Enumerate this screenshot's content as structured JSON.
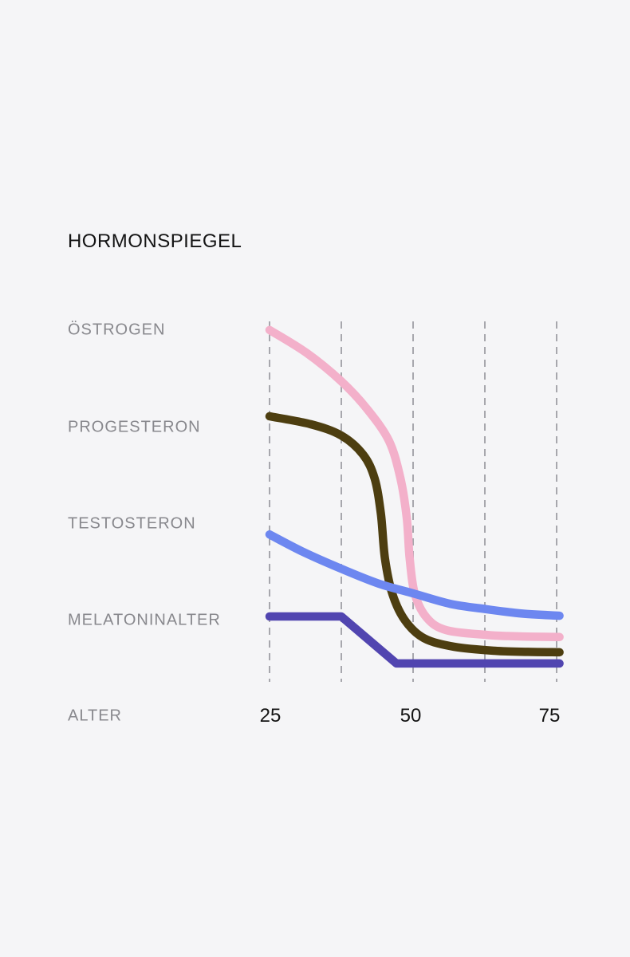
{
  "page": {
    "background_color": "#f5f5f7"
  },
  "chart": {
    "title": "HORMONSPIEGEL",
    "row_labels": [
      "ÖSTROGEN",
      "PROGESTERON",
      "TESTOSTERON",
      "MELATONINALTER"
    ],
    "axis_label": "ALTER",
    "colors": {
      "title_text": "#141414",
      "label_text": "#88888d",
      "tick_text": "#141414",
      "gridline": "#a7a7ad"
    }
  },
  "chart_data": {
    "type": "line",
    "title": "HORMONSPIEGEL",
    "xlabel": "ALTER",
    "ylabel": "",
    "x_range": [
      25,
      75.5
    ],
    "ylim": [
      0,
      100
    ],
    "x_tick_labels": [
      "25",
      "50",
      "75"
    ],
    "x_ticks": [
      25,
      50,
      75
    ],
    "grid_ages": [
      25,
      37.5,
      50,
      62.5,
      75
    ],
    "grid_style": "vertical-dashed",
    "legend_position": "left-of-line-start",
    "series": [
      {
        "name": "ÖSTROGEN",
        "slug": "oestrogen",
        "color": "#f3b0ca",
        "smooth": true,
        "points": [
          [
            25,
            97.4
          ],
          [
            31.5,
            91.0
          ],
          [
            37.5,
            83.2
          ],
          [
            41.9,
            75.7
          ],
          [
            45.8,
            66.7
          ],
          [
            47.8,
            56.3
          ],
          [
            48.9,
            45.3
          ],
          [
            49.4,
            34.2
          ],
          [
            50.3,
            24.3
          ],
          [
            52.4,
            17.7
          ],
          [
            55.8,
            14.3
          ],
          [
            62.8,
            13.0
          ],
          [
            68.0,
            12.6
          ],
          [
            75.5,
            12.4
          ]
        ]
      },
      {
        "name": "PROGESTERON",
        "slug": "progesteron",
        "color": "#4d3e10",
        "smooth": true,
        "points": [
          [
            25,
            73.5
          ],
          [
            32.2,
            71.3
          ],
          [
            37.5,
            68.2
          ],
          [
            41.3,
            62.9
          ],
          [
            43.3,
            56.3
          ],
          [
            44.4,
            46.4
          ],
          [
            45.1,
            34.2
          ],
          [
            46.4,
            24.3
          ],
          [
            48.6,
            17.0
          ],
          [
            51.9,
            12.1
          ],
          [
            57.2,
            9.7
          ],
          [
            64.2,
            8.6
          ],
          [
            70.0,
            8.3
          ],
          [
            75.5,
            8.2
          ]
        ]
      },
      {
        "name": "MELATONINALTER",
        "slug": "melatoninalter",
        "color": "#5145b0",
        "smooth": false,
        "points": [
          [
            25,
            18.1
          ],
          [
            37.5,
            18.1
          ],
          [
            47.1,
            5.1
          ],
          [
            75.5,
            5.1
          ]
        ]
      },
      {
        "name": "TESTOSTERON",
        "slug": "testosteron",
        "color": "#6d87f0",
        "smooth": true,
        "points": [
          [
            25,
            40.8
          ],
          [
            30.8,
            36.0
          ],
          [
            37.5,
            31.3
          ],
          [
            44.0,
            27.2
          ],
          [
            50.0,
            24.5
          ],
          [
            56.5,
            21.6
          ],
          [
            62.8,
            20.1
          ],
          [
            69.0,
            18.9
          ],
          [
            75.5,
            18.3
          ]
        ]
      }
    ]
  }
}
